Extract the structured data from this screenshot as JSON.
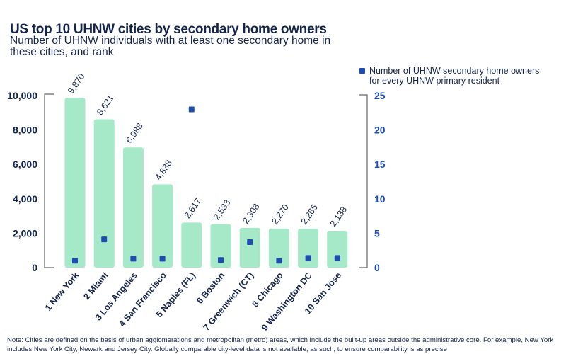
{
  "chart_data": {
    "type": "bar",
    "title": "US top 10 UHNW cities by secondary home owners",
    "subtitle": "Number of UHNW individuals with at least one secondary home in these cities, and rank",
    "categories": [
      "1 New York",
      "2 Miami",
      "3 Los Angeles",
      "4 San Francisco",
      "5 Naples (FL)",
      "6 Boston",
      "7 Greenwich (CT)",
      "8 Chicago",
      "9 Washington DC",
      "10 San Jose"
    ],
    "series": [
      {
        "type": "bar",
        "axis": "left",
        "values": [
          9870,
          8621,
          6988,
          4838,
          2617,
          2533,
          2308,
          2270,
          2265,
          2138
        ],
        "data_labels": [
          "9,870",
          "8,621",
          "6,988",
          "4,838",
          "2,617",
          "2,533",
          "2,308",
          "2,270",
          "2,265",
          "2,138"
        ],
        "color": "#a6e9c9"
      },
      {
        "type": "scatter",
        "axis": "right",
        "name": "Number of UHNW secondary home owners for every UHNW primary resident",
        "values": [
          1.0,
          4.1,
          1.3,
          1.3,
          23.0,
          1.1,
          3.7,
          1.0,
          1.4,
          1.4
        ],
        "color": "#1e4db0"
      }
    ],
    "left_axis": {
      "ylim": [
        0,
        10000
      ],
      "ticks": [
        "0",
        "2,000",
        "4,000",
        "6,000",
        "8,000",
        "10,000"
      ]
    },
    "right_axis": {
      "ylim": [
        0,
        25
      ],
      "ticks": [
        "0",
        "5",
        "10",
        "15",
        "20",
        "25"
      ],
      "color": "#1e4db0"
    },
    "legend": "top-right",
    "grid": false
  },
  "note": "Note: Cities are defined on the basis of urban agglomerations and metropolitan (metro) areas, which include the built-up areas outside the administrative core. For example, New York includes New York City, Newark and Jersey City. Globally comparable city-level data is not available; as such, to ensure comparability is as precise"
}
